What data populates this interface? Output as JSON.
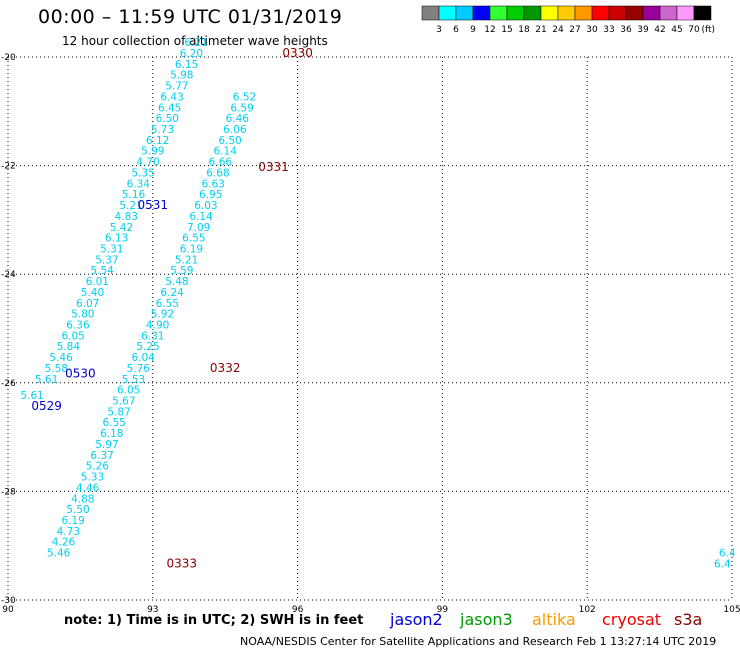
{
  "title": "00:00 – 11:59 UTC 01/31/2019",
  "subtitle": "12 hour collection of altimeter wave heights",
  "note": "note: 1) Time is in UTC; 2) SWH is in feet",
  "credit": "NOAA/NESDIS Center for Satellite Applications and Research    Feb  1 13:27:14 UTC 2019",
  "satellites": [
    {
      "name": "jason2",
      "color": "#0000dd"
    },
    {
      "name": "jason3",
      "color": "#009900"
    },
    {
      "name": "altika",
      "color": "#ff9900"
    },
    {
      "name": "cryosat",
      "color": "#ee0000"
    },
    {
      "name": "s3a",
      "color": "#880000"
    }
  ],
  "colorbar": {
    "unit": "(ft)",
    "colors": [
      "#808080",
      "#00ffff",
      "#00ccff",
      "#0000ff",
      "#33ff33",
      "#00cc00",
      "#009900",
      "#ffff00",
      "#ffcc00",
      "#ff9900",
      "#ff0000",
      "#cc0000",
      "#990000",
      "#990099",
      "#cc66cc",
      "#ff99ff",
      "#000000"
    ],
    "labels": [
      "3",
      "6",
      "9",
      "12",
      "15",
      "18",
      "21",
      "24",
      "27",
      "30",
      "33",
      "36",
      "39",
      "42",
      "45",
      "70"
    ]
  },
  "map": {
    "lon_range": [
      90,
      105
    ],
    "lat_range": [
      -30,
      -20
    ],
    "lon_ticks": [
      90,
      93,
      96,
      99,
      102,
      105
    ],
    "lat_ticks": [
      -20,
      -22,
      -24,
      -26,
      -28,
      -30
    ],
    "swh_color": "#00d0f0",
    "pass_label_colors": {
      "0529": "#0000cc",
      "0530": "#0000cc",
      "0531": "#0000cc",
      "0330": "#880000",
      "0331": "#880000",
      "0332": "#880000",
      "0333": "#880000"
    },
    "tracks": [
      {
        "label": "0531",
        "label_at": [
          93.0,
          -22.8
        ],
        "points": [
          [
            90.5,
            -26.3,
            "5.61"
          ],
          [
            90.8,
            -26.0,
            "5.61"
          ],
          [
            91.0,
            -25.8,
            "5.58"
          ],
          [
            91.1,
            -25.6,
            "5.46"
          ],
          [
            91.25,
            -25.4,
            "5.84"
          ],
          [
            91.35,
            -25.2,
            "6.05"
          ],
          [
            91.45,
            -25.0,
            "6.36"
          ],
          [
            91.55,
            -24.8,
            "5.80"
          ],
          [
            91.65,
            -24.6,
            "6.07"
          ],
          [
            91.75,
            -24.4,
            "5.40"
          ],
          [
            91.85,
            -24.2,
            "6.01"
          ],
          [
            91.95,
            -24.0,
            "5.54"
          ],
          [
            92.05,
            -23.8,
            "5.37"
          ],
          [
            92.15,
            -23.6,
            "5.31"
          ],
          [
            92.25,
            -23.4,
            "6.13"
          ],
          [
            92.35,
            -23.2,
            "5.42"
          ],
          [
            92.45,
            -23.0,
            "4.83"
          ],
          [
            92.55,
            -22.8,
            "5.21"
          ],
          [
            92.6,
            -22.6,
            "5.16"
          ],
          [
            92.7,
            -22.4,
            "6.34"
          ],
          [
            92.8,
            -22.2,
            "5.35"
          ],
          [
            92.9,
            -22.0,
            "4.70"
          ],
          [
            93.0,
            -21.8,
            "5.99"
          ],
          [
            93.1,
            -21.6,
            "6.12"
          ],
          [
            93.2,
            -21.4,
            "5.73"
          ],
          [
            93.3,
            -21.2,
            "6.50"
          ],
          [
            93.35,
            -21.0,
            "6.45"
          ],
          [
            93.4,
            -20.8,
            "6.43"
          ],
          [
            93.5,
            -20.6,
            "5.77"
          ],
          [
            93.6,
            -20.4,
            "5.98"
          ],
          [
            93.7,
            -20.2,
            "6.15"
          ],
          [
            93.8,
            -20.0,
            "6.20"
          ],
          [
            93.9,
            -19.8,
            "6.21"
          ]
        ]
      },
      {
        "label": "0331",
        "label_at": [
          95.5,
          -22.1
        ],
        "points": [
          [
            92.8,
            -25.6,
            "6.04"
          ],
          [
            92.9,
            -25.4,
            "5.25"
          ],
          [
            93.0,
            -25.2,
            "6.31"
          ],
          [
            93.1,
            -25.0,
            "4.90"
          ],
          [
            93.2,
            -24.8,
            "5.92"
          ],
          [
            93.3,
            -24.6,
            "6.55"
          ],
          [
            93.4,
            -24.4,
            "6.24"
          ],
          [
            93.5,
            -24.2,
            "5.48"
          ],
          [
            93.6,
            -24.0,
            "5.59"
          ],
          [
            93.7,
            -23.8,
            "5.21"
          ],
          [
            93.8,
            -23.6,
            "6.19"
          ],
          [
            93.85,
            -23.4,
            "6.55"
          ],
          [
            93.95,
            -23.2,
            "7.09"
          ],
          [
            94.0,
            -23.0,
            "6.14"
          ],
          [
            94.1,
            -22.8,
            "6.03"
          ],
          [
            94.2,
            -22.6,
            "6.95"
          ],
          [
            94.25,
            -22.4,
            "6.63"
          ],
          [
            94.35,
            -22.2,
            "6.68"
          ],
          [
            94.4,
            -22.0,
            "6.66"
          ],
          [
            94.5,
            -21.8,
            "6.14"
          ],
          [
            94.6,
            -21.6,
            "6.50"
          ],
          [
            94.7,
            -21.4,
            "6.06"
          ],
          [
            94.75,
            -21.2,
            "6.46"
          ],
          [
            94.85,
            -21.0,
            "6.59"
          ],
          [
            94.9,
            -20.8,
            "6.52"
          ]
        ]
      },
      {
        "label": "0530",
        "label_at": [
          91.5,
          -25.9
        ],
        "points": []
      },
      {
        "label": "0529",
        "label_at": [
          90.8,
          -26.5
        ],
        "points": []
      },
      {
        "label": "0330",
        "label_at": [
          96.0,
          -20.0
        ],
        "points": []
      },
      {
        "label": "0332",
        "label_at": [
          94.5,
          -25.8
        ],
        "points": []
      },
      {
        "label": "0333",
        "label_at": [
          93.6,
          -29.4
        ],
        "points": [
          [
            92.7,
            -25.8,
            "5.76"
          ],
          [
            92.6,
            -26.0,
            "5.53"
          ],
          [
            92.5,
            -26.2,
            "6.05"
          ],
          [
            92.4,
            -26.4,
            "5.67"
          ],
          [
            92.3,
            -26.6,
            "5.87"
          ],
          [
            92.2,
            -26.8,
            "6.55"
          ],
          [
            92.15,
            -27.0,
            "6.18"
          ],
          [
            92.05,
            -27.2,
            "5.97"
          ],
          [
            91.95,
            -27.4,
            "6.37"
          ],
          [
            91.85,
            -27.6,
            "5.26"
          ],
          [
            91.75,
            -27.8,
            "5.33"
          ],
          [
            91.65,
            -28.0,
            "4.46"
          ],
          [
            91.55,
            -28.2,
            "4.88"
          ],
          [
            91.45,
            -28.4,
            "5.50"
          ],
          [
            91.35,
            -28.6,
            "6.19"
          ],
          [
            91.25,
            -28.8,
            "4.73"
          ],
          [
            91.15,
            -29.0,
            "4.26"
          ],
          [
            91.05,
            -29.2,
            "5.46"
          ]
        ]
      },
      {
        "label": "",
        "label_at": [
          0,
          0
        ],
        "points": [
          [
            104.8,
            -29.4,
            "6.4"
          ],
          [
            104.9,
            -29.2,
            "6.4"
          ]
        ]
      }
    ]
  }
}
